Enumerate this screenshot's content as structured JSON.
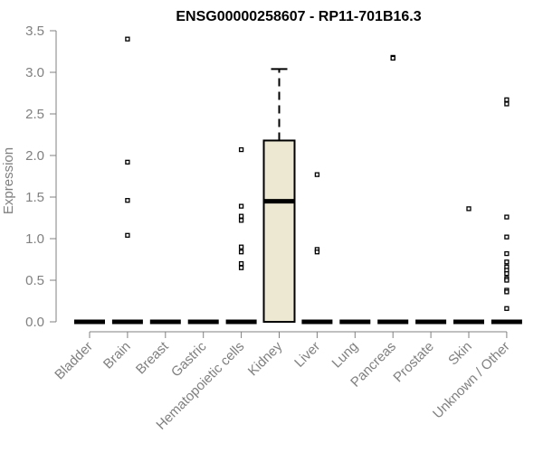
{
  "chart_data": {
    "type": "box",
    "title": "ENSG00000258607 - RP11-701B16.3",
    "xlabel": "",
    "ylabel": "Expression",
    "ylim": [
      0,
      3.5
    ],
    "yticks": [
      "0.0",
      "0.5",
      "1.0",
      "1.5",
      "2.0",
      "2.5",
      "3.0",
      "3.5"
    ],
    "grid": false,
    "colors": {
      "box_fill": "#EDE8D2",
      "axis": "#808080",
      "marks": "#000000"
    },
    "categories": [
      "Bladder",
      "Brain",
      "Breast",
      "Gastric",
      "Hematopoietic cells",
      "Kidney",
      "Liver",
      "Lung",
      "Pancreas",
      "Prostate",
      "Skin",
      "Unknown / Other"
    ],
    "boxes": [
      {
        "category": "Bladder",
        "q1": 0,
        "median": 0,
        "q3": 0,
        "whisker_low": 0,
        "whisker_high": 0,
        "outliers": []
      },
      {
        "category": "Brain",
        "q1": 0,
        "median": 0,
        "q3": 0,
        "whisker_low": 0,
        "whisker_high": 0,
        "outliers": [
          3.4,
          1.92,
          1.46,
          1.04
        ]
      },
      {
        "category": "Breast",
        "q1": 0,
        "median": 0,
        "q3": 0,
        "whisker_low": 0,
        "whisker_high": 0,
        "outliers": []
      },
      {
        "category": "Gastric",
        "q1": 0,
        "median": 0,
        "q3": 0,
        "whisker_low": 0,
        "whisker_high": 0,
        "outliers": []
      },
      {
        "category": "Hematopoietic cells",
        "q1": 0,
        "median": 0,
        "q3": 0,
        "whisker_low": 0,
        "whisker_high": 0,
        "outliers": [
          2.07,
          1.39,
          1.27,
          1.22,
          0.9,
          0.84,
          0.7,
          0.65
        ]
      },
      {
        "category": "Kidney",
        "q1": 0,
        "median": 1.45,
        "q3": 2.18,
        "whisker_low": 0,
        "whisker_high": 3.04,
        "outliers": []
      },
      {
        "category": "Liver",
        "q1": 0,
        "median": 0,
        "q3": 0,
        "whisker_low": 0,
        "whisker_high": 0,
        "outliers": [
          1.77,
          0.87,
          0.84
        ]
      },
      {
        "category": "Lung",
        "q1": 0,
        "median": 0,
        "q3": 0,
        "whisker_low": 0,
        "whisker_high": 0,
        "outliers": []
      },
      {
        "category": "Pancreas",
        "q1": 0,
        "median": 0,
        "q3": 0,
        "whisker_low": 0,
        "whisker_high": 0,
        "outliers": [
          3.18,
          3.17
        ]
      },
      {
        "category": "Prostate",
        "q1": 0,
        "median": 0,
        "q3": 0,
        "whisker_low": 0,
        "whisker_high": 0,
        "outliers": []
      },
      {
        "category": "Skin",
        "q1": 0,
        "median": 0,
        "q3": 0,
        "whisker_low": 0,
        "whisker_high": 0,
        "outliers": [
          1.36
        ]
      },
      {
        "category": "Unknown / Other",
        "q1": 0,
        "median": 0,
        "q3": 0,
        "whisker_low": 0,
        "whisker_high": 0,
        "outliers": [
          2.67,
          2.62,
          1.26,
          1.02,
          0.82,
          0.72,
          0.66,
          0.62,
          0.58,
          0.52,
          0.5,
          0.38,
          0.36,
          0.16
        ]
      }
    ]
  }
}
